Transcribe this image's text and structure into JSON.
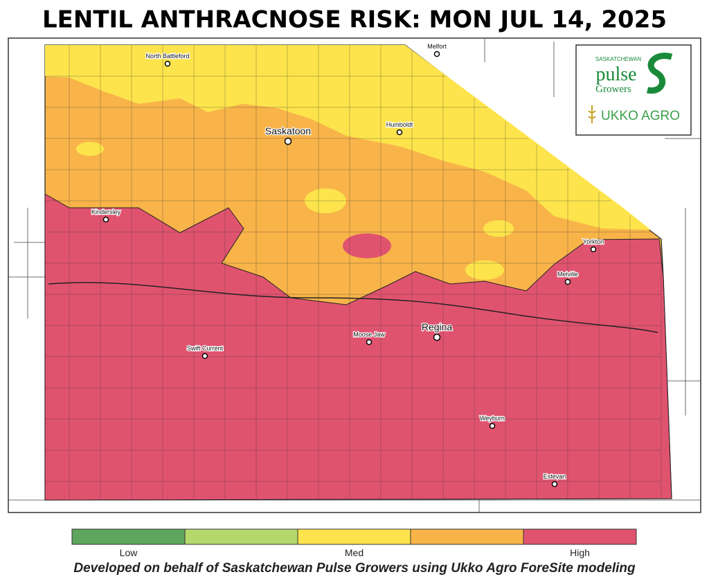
{
  "title": "LENTIL ANTHRACNOSE RISK: MON JUL 14, 2025",
  "cities": [
    "North Battleford",
    "Melfort",
    "Saskatoon",
    "Humboldt",
    "Kindersley",
    "Yorkton",
    "Melville",
    "Regina",
    "Moose Jaw",
    "Swift Current",
    "Weyburn",
    "Estevan"
  ],
  "logo": {
    "org_top": "SASKATCHEWAN",
    "org_main": "pulse",
    "org_sub": "Growers",
    "partner": "UKKO AGRO"
  },
  "legend": {
    "colors": [
      "#5ea65d",
      "#b5d86c",
      "#fde44c",
      "#f8b449",
      "#e0536f"
    ],
    "labels": [
      "Low",
      "Med",
      "High"
    ]
  },
  "footer": "Developed on behalf of Saskatchewan Pulse Growers using Ukko Agro ForeSite modeling"
}
